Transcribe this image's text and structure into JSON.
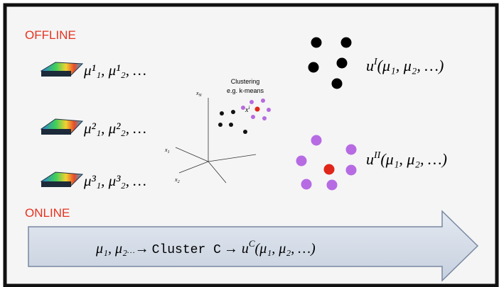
{
  "sections": {
    "offline": "OFFLINE",
    "online": "ONLINE"
  },
  "snapshots": [
    "μ¹₁, μ¹₂, …",
    "μ²₁, μ²₂, …",
    "μ³₁, μ³₂, …"
  ],
  "clustering": {
    "title": "Clustering",
    "subtitle": "e.g. k-means",
    "axes": [
      {
        "base": "x",
        "sub": "N"
      },
      {
        "base": "x",
        "sub": "1"
      },
      {
        "base": "x",
        "sub": "2"
      }
    ],
    "point_label": {
      "base": "x",
      "sup": "i"
    }
  },
  "clusters": [
    {
      "base": "u",
      "sup": "I",
      "args": "(μ₁, μ₂, …)"
    },
    {
      "base": "u",
      "sup": "II",
      "args": "(μ₁, μ₂, …)"
    }
  ],
  "online_flow": [
    "μ₁, μ₂",
    "…",
    "→",
    "Cluster C",
    "→ u",
    "C",
    "(μ₁, μ₂, …)"
  ]
}
